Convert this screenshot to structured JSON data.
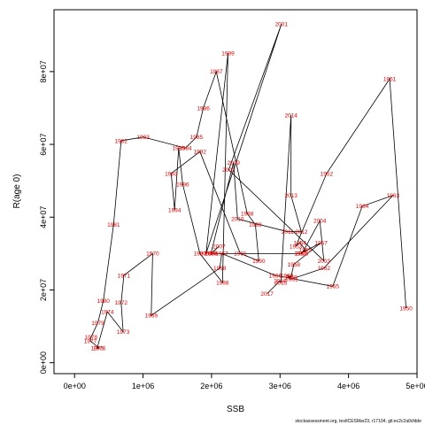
{
  "chart_data": {
    "type": "line",
    "xlabel": "SSB",
    "ylabel": "R(age 0)",
    "xlim": [
      -300000,
      5000000
    ],
    "ylim": [
      -3000000,
      97000000
    ],
    "xticks": [
      0,
      1000000,
      2000000,
      3000000,
      4000000,
      5000000
    ],
    "xtick_labels": [
      "0e+00",
      "1e+06",
      "2e+06",
      "3e+06",
      "4e+06",
      "5e+06"
    ],
    "yticks": [
      0,
      20000000,
      40000000,
      60000000,
      80000000
    ],
    "ytick_labels": [
      "0e+00",
      "2e+07",
      "4e+07",
      "6e+07",
      "8e+07"
    ],
    "grid": false,
    "footer": "stockassessment.org, testICESMar23, r17104, git:ec2c2a0cfdde",
    "points": [
      {
        "year": "1950",
        "x": 4840000,
        "y": 15000000
      },
      {
        "year": "1951",
        "x": 4600000,
        "y": 78000000
      },
      {
        "year": "1952",
        "x": 3680000,
        "y": 52000000
      },
      {
        "year": "1953",
        "x": 3230000,
        "y": 32000000
      },
      {
        "year": "1954",
        "x": 3290000,
        "y": 33000000
      },
      {
        "year": "1955",
        "x": 3370000,
        "y": 31000000
      },
      {
        "year": "1956",
        "x": 3300000,
        "y": 30000000
      },
      {
        "year": "1957",
        "x": 3600000,
        "y": 33000000
      },
      {
        "year": "1958",
        "x": 3200000,
        "y": 27000000
      },
      {
        "year": "1959",
        "x": 3160000,
        "y": 23500000
      },
      {
        "year": "1960",
        "x": 3100000,
        "y": 24000000
      },
      {
        "year": "1961",
        "x": 3170000,
        "y": 23000000
      },
      {
        "year": "1962",
        "x": 3640000,
        "y": 26000000
      },
      {
        "year": "1963",
        "x": 4650000,
        "y": 46000000
      },
      {
        "year": "1964",
        "x": 4200000,
        "y": 43000000
      },
      {
        "year": "1965",
        "x": 3770000,
        "y": 21000000
      },
      {
        "year": "1966",
        "x": 2930000,
        "y": 24000000
      },
      {
        "year": "1967",
        "x": 2150000,
        "y": 30000000
      },
      {
        "year": "1968",
        "x": 2120000,
        "y": 26000000
      },
      {
        "year": "1969",
        "x": 1120000,
        "y": 13000000
      },
      {
        "year": "1970",
        "x": 1140000,
        "y": 30000000
      },
      {
        "year": "1971",
        "x": 720000,
        "y": 24000000
      },
      {
        "year": "1972",
        "x": 680000,
        "y": 16500000
      },
      {
        "year": "1973",
        "x": 710000,
        "y": 8500000
      },
      {
        "year": "1974",
        "x": 480000,
        "y": 14000000
      },
      {
        "year": "1975",
        "x": 330000,
        "y": 4000000
      },
      {
        "year": "1976",
        "x": 360000,
        "y": 4000000
      },
      {
        "year": "1977",
        "x": 230000,
        "y": 6000000
      },
      {
        "year": "1978",
        "x": 240000,
        "y": 7000000
      },
      {
        "year": "1979",
        "x": 340000,
        "y": 11000000
      },
      {
        "year": "1980",
        "x": 420000,
        "y": 17000000
      },
      {
        "year": "1981",
        "x": 570000,
        "y": 38000000
      },
      {
        "year": "1982",
        "x": 680000,
        "y": 61000000
      },
      {
        "year": "1983",
        "x": 1000000,
        "y": 62000000
      },
      {
        "year": "1984",
        "x": 1620000,
        "y": 59000000
      },
      {
        "year": "1985",
        "x": 1780000,
        "y": 62000000
      },
      {
        "year": "1986",
        "x": 1880000,
        "y": 70000000
      },
      {
        "year": "1987",
        "x": 2070000,
        "y": 80000000
      },
      {
        "year": "1988",
        "x": 2520000,
        "y": 41000000
      },
      {
        "year": "1989",
        "x": 2640000,
        "y": 38000000
      },
      {
        "year": "1990",
        "x": 2690000,
        "y": 28000000
      },
      {
        "year": "1991",
        "x": 2420000,
        "y": 30000000
      },
      {
        "year": "1992",
        "x": 1830000,
        "y": 58000000
      },
      {
        "year": "1993",
        "x": 1410000,
        "y": 52000000
      },
      {
        "year": "1994",
        "x": 1460000,
        "y": 42000000
      },
      {
        "year": "1995",
        "x": 1520000,
        "y": 59000000
      },
      {
        "year": "1996",
        "x": 1580000,
        "y": 49000000
      },
      {
        "year": "1997",
        "x": 1830000,
        "y": 30000000
      },
      {
        "year": "1998",
        "x": 2160000,
        "y": 22000000
      },
      {
        "year": "1999",
        "x": 2240000,
        "y": 85000000
      },
      {
        "year": "2000",
        "x": 1920000,
        "y": 30000000
      },
      {
        "year": "2001",
        "x": 3020000,
        "y": 93000000
      },
      {
        "year": "2002",
        "x": 2250000,
        "y": 53000000
      },
      {
        "year": "2003",
        "x": 3640000,
        "y": 28000000
      },
      {
        "year": "2004",
        "x": 3580000,
        "y": 39000000
      },
      {
        "year": "2005",
        "x": 3320000,
        "y": 30000000
      },
      {
        "year": "2006",
        "x": 2000000,
        "y": 30000000
      },
      {
        "year": "2007",
        "x": 2110000,
        "y": 32000000
      },
      {
        "year": "2008",
        "x": 1990000,
        "y": 30000000
      },
      {
        "year": "2009",
        "x": 2320000,
        "y": 55000000
      },
      {
        "year": "2010",
        "x": 2380000,
        "y": 39500000
      },
      {
        "year": "2011",
        "x": 3110000,
        "y": 36000000
      },
      {
        "year": "2012",
        "x": 3310000,
        "y": 36000000
      },
      {
        "year": "2013",
        "x": 3160000,
        "y": 46000000
      },
      {
        "year": "2014",
        "x": 3160000,
        "y": 68000000
      },
      {
        "year": "2015",
        "x": 3010000,
        "y": 22000000
      },
      {
        "year": "2016",
        "x": 3000000,
        "y": 22500000
      },
      {
        "year": "2017",
        "x": 2810000,
        "y": 19000000
      }
    ]
  }
}
